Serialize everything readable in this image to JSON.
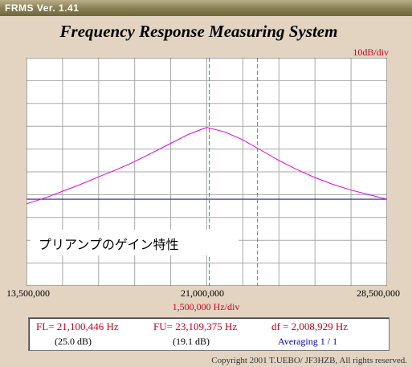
{
  "window": {
    "title": "FRMS  Ver. 1.41"
  },
  "header": {
    "title": "Frequency Response Measuring System"
  },
  "y_scale_label": "10dB/div",
  "x_scale_label": "1,500,000  Hz/div",
  "x_ticks": {
    "left": "13,500,000",
    "center": "21,000,000",
    "right": "28,500,000"
  },
  "overlay_text": "プリアンプのゲイン特性",
  "readout": {
    "fl": "FL= 21,100,446  Hz",
    "fu": "FU= 23,109,375  Hz",
    "df": "df = 2,008,929  Hz",
    "fl_db": "(25.0 dB)",
    "fu_db": "(19.1 dB)",
    "averaging": "Averaging   1 / 1"
  },
  "copyright": "Copyright 2001 T.UEBO/ JF3HZB, All rights reserved.",
  "colors": {
    "trace": "#e000e0",
    "baseline": "#1a1ab0",
    "markers": "#10a0b0",
    "label_red": "#d0001c",
    "label_blue": "#0000c0"
  },
  "chart_data": {
    "type": "line",
    "title": "Frequency Response Measuring System",
    "x_unit": "Hz",
    "xlim": [
      13500000,
      28500000
    ],
    "x_div": 1500000,
    "y_div_db": 10,
    "grid": true,
    "markers_hz": [
      21100446,
      23109375
    ],
    "baseline_div": 3.8,
    "series": [
      {
        "x": [
          13500000,
          14250000,
          15000000,
          15750000,
          16500000,
          17250000,
          18000000,
          18750000,
          19500000,
          20250000,
          21000000,
          21750000,
          22500000,
          23250000,
          24000000,
          24750000,
          25500000,
          26250000,
          27000000,
          27750000,
          28500000
        ],
        "y_div": [
          3.6,
          3.85,
          4.15,
          4.45,
          4.78,
          5.1,
          5.45,
          5.85,
          6.25,
          6.65,
          6.95,
          6.75,
          6.4,
          5.95,
          5.5,
          5.1,
          4.75,
          4.45,
          4.2,
          4.0,
          3.8
        ]
      }
    ]
  }
}
